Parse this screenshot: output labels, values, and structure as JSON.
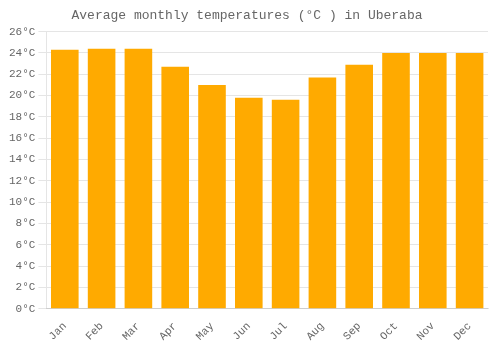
{
  "chart_data": {
    "type": "bar",
    "title": "Average monthly temperatures (°C ) in Uberaba",
    "categories": [
      "Jan",
      "Feb",
      "Mar",
      "Apr",
      "May",
      "Jun",
      "Jul",
      "Aug",
      "Sep",
      "Oct",
      "Nov",
      "Dec"
    ],
    "values": [
      24.3,
      24.4,
      24.4,
      22.7,
      21.0,
      19.8,
      19.6,
      21.7,
      22.9,
      24.0,
      24.0,
      24.0
    ],
    "color": "#FFAA00",
    "ylim": [
      0,
      26
    ],
    "yticks": [
      {
        "value": 0,
        "label": "0°C"
      },
      {
        "value": 2,
        "label": "2°C"
      },
      {
        "value": 4,
        "label": "4°C"
      },
      {
        "value": 6,
        "label": "6°C"
      },
      {
        "value": 8,
        "label": "8°C"
      },
      {
        "value": 10,
        "label": "10°C"
      },
      {
        "value": 12,
        "label": "12°C"
      },
      {
        "value": 14,
        "label": "14°C"
      },
      {
        "value": 16,
        "label": "16°C"
      },
      {
        "value": 18,
        "label": "18°C"
      },
      {
        "value": 20,
        "label": "20°C"
      },
      {
        "value": 22,
        "label": "22°C"
      },
      {
        "value": 24,
        "label": "24°C"
      },
      {
        "value": 26,
        "label": "26°C"
      }
    ],
    "grid": true
  }
}
